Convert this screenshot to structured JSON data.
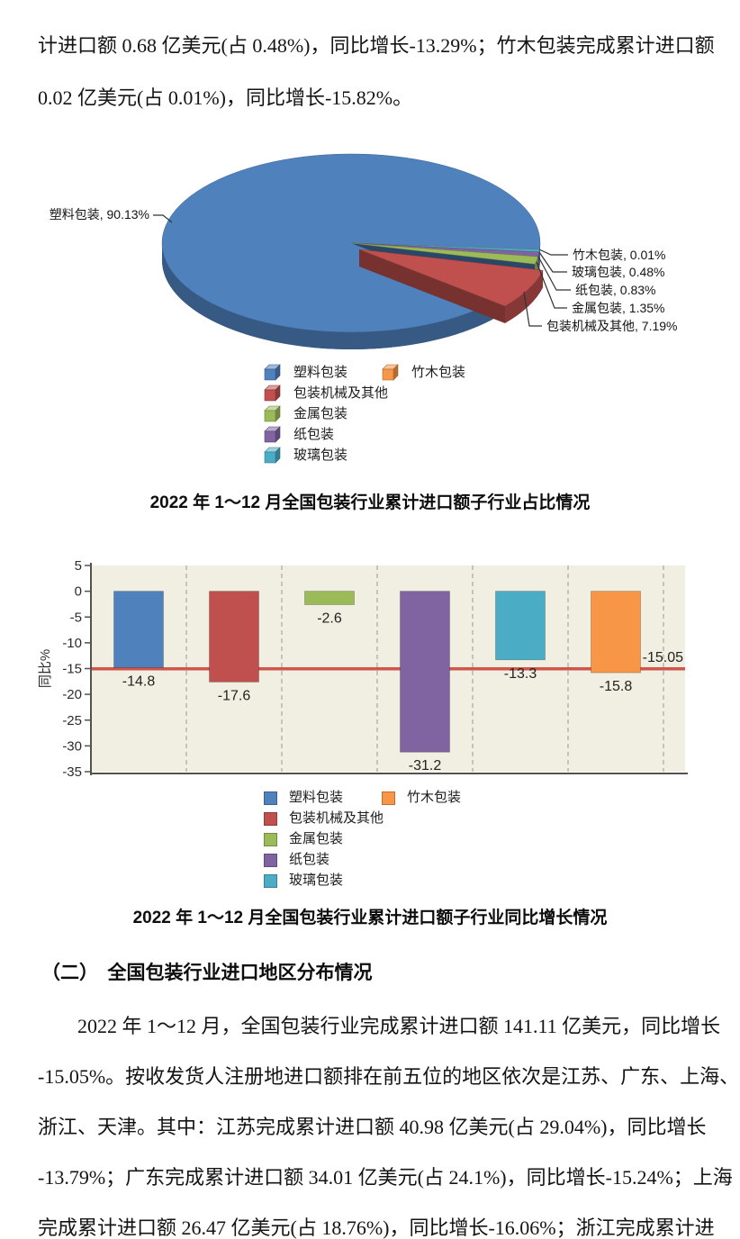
{
  "page": {
    "top_paragraph_lines": [
      "计进口额 0.68 亿美元(占 0.48%)，同比增长-13.29%；竹木包装完成累计进口额",
      "0.02 亿美元(占 0.01%)，同比增长-15.82%。"
    ],
    "section_heading": "（二）　全国包装行业进口地区分布情况",
    "bottom_paragraph_lines": [
      "2022 年 1～12 月，全国包装行业完成累计进口额 141.11 亿美元，同比增长",
      "-15.05%。按收发货人注册地进口额排在前五位的地区依次是江苏、广东、上海、",
      "浙江、天津。其中：江苏完成累计进口额 40.98 亿美元(占 29.04%)，同比增长",
      "-13.79%；广东完成累计进口额 34.01 亿美元(占 24.1%)，同比增长-15.24%；上海",
      "完成累计进口额 26.47 亿美元(占 18.76%)，同比增长-16.06%；浙江完成累计进"
    ]
  },
  "chart_data": [
    {
      "type": "pie",
      "title": "2022 年 1～12 月全国包装行业累计进口额子行业占比情况",
      "style": "3d-exploded",
      "start_angle_deg": 4,
      "direction": "clockwise",
      "slices": [
        {
          "label": "竹木包装",
          "value": 0.01,
          "color": "#F79646",
          "exploded": false
        },
        {
          "label": "玻璃包装",
          "value": 0.48,
          "color": "#4BACC6",
          "exploded": false
        },
        {
          "label": "纸包装",
          "value": 0.83,
          "color": "#8064A2",
          "exploded": false
        },
        {
          "label": "金属包装",
          "value": 1.35,
          "color": "#9BBB59",
          "exploded": false
        },
        {
          "label": "包装机械及其他",
          "value": 7.19,
          "color": "#C0504D",
          "exploded": true
        },
        {
          "label": "塑料包装",
          "value": 90.13,
          "color": "#4F81BD",
          "exploded": false
        }
      ],
      "callout_format": "{label}, {value}%",
      "legend": {
        "marker": "cube3d",
        "items": [
          {
            "label": "塑料包装",
            "color": "#4F81BD",
            "col": 0
          },
          {
            "label": "包装机械及其他",
            "color": "#C0504D",
            "col": 0
          },
          {
            "label": "金属包装",
            "color": "#9BBB59",
            "col": 0
          },
          {
            "label": "纸包装",
            "color": "#8064A2",
            "col": 0
          },
          {
            "label": "玻璃包装",
            "color": "#4BACC6",
            "col": 0
          },
          {
            "label": "竹木包装",
            "color": "#F79646",
            "col": 1
          }
        ]
      }
    },
    {
      "type": "bar",
      "title": "2022 年 1～12 月全国包装行业累计进口额子行业同比增长情况",
      "ylabel": "同比%",
      "ylim": [
        -35,
        5
      ],
      "yticks": [
        5,
        0,
        -5,
        -10,
        -15,
        -20,
        -25,
        -30,
        -35
      ],
      "grid": "dashed-vertical",
      "plot_bg": "#F0EFE2",
      "categories": [
        "塑料包装",
        "包装机械及其他",
        "金属包装",
        "纸包装",
        "玻璃包装",
        "竹木包装"
      ],
      "values": [
        -14.8,
        -17.6,
        -2.6,
        -31.2,
        -13.3,
        -15.8
      ],
      "value_labels": [
        "-14.8",
        "-17.6",
        "-2.6",
        "-31.2",
        "-13.3",
        "-15.8"
      ],
      "bar_colors": [
        "#4F81BD",
        "#C0504D",
        "#9BBB59",
        "#8064A2",
        "#4BACC6",
        "#F79646"
      ],
      "reference_line": {
        "value": -15.05,
        "label": "-15.05",
        "color": "#D0554D"
      },
      "legend": {
        "marker": "square",
        "items": [
          {
            "label": "塑料包装",
            "color": "#4F81BD",
            "col": 0
          },
          {
            "label": "包装机械及其他",
            "color": "#C0504D",
            "col": 0
          },
          {
            "label": "金属包装",
            "color": "#9BBB59",
            "col": 0
          },
          {
            "label": "纸包装",
            "color": "#8064A2",
            "col": 0
          },
          {
            "label": "玻璃包装",
            "color": "#4BACC6",
            "col": 0
          },
          {
            "label": "竹木包装",
            "color": "#F79646",
            "col": 1
          }
        ]
      }
    }
  ]
}
